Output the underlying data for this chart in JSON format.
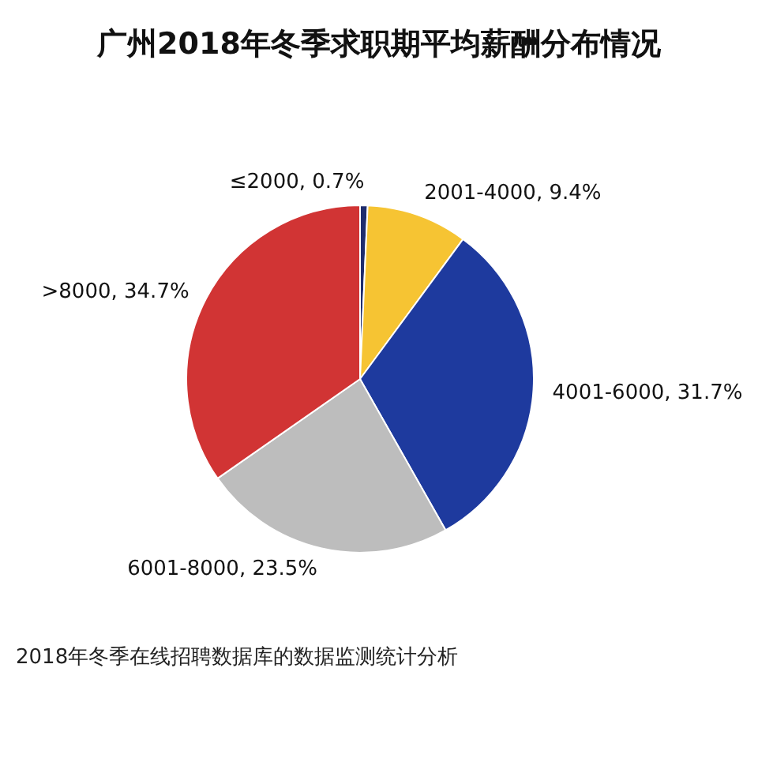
{
  "chart_data": {
    "type": "pie",
    "title": "广州2018年冬季求职期平均薪酬分布情况",
    "categories": [
      "≤2000",
      "2001-4000",
      "4001-6000",
      "6001-8000",
      ">8000"
    ],
    "values": [
      0.7,
      9.4,
      31.7,
      23.5,
      34.7
    ],
    "value_labels": [
      ", 0.7%",
      ", 9.4%",
      ", 31.7%",
      ", 23.5%",
      ", 34.7%"
    ],
    "colors": [
      "#1f2d6e",
      "#f6c433",
      "#1e3a9e",
      "#bdbdbd",
      "#d13434"
    ],
    "annotations": [
      "2018年冬季在线招聘数据库的数据监测统计分析"
    ]
  }
}
